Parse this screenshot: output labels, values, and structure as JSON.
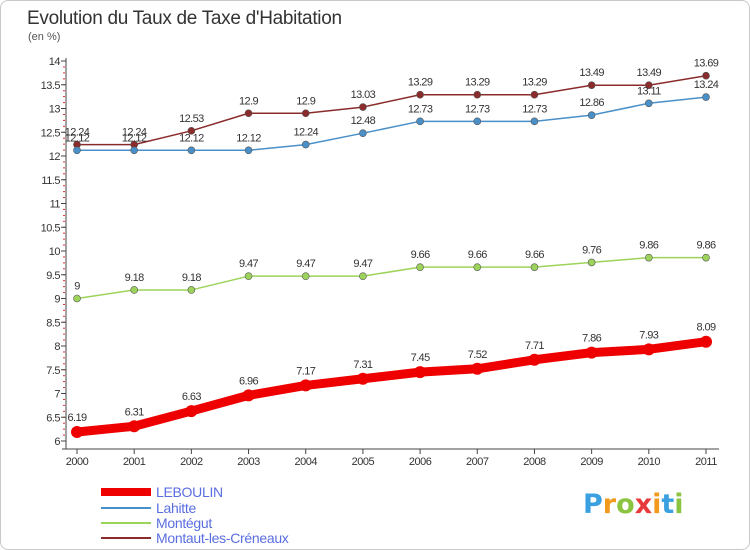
{
  "title": "Evolution du Taux de Taxe d'Habitation",
  "unit_label": "(en %)",
  "brand": [
    "P",
    "r",
    "o",
    "x",
    "i",
    "t",
    "i"
  ],
  "brand_colors": [
    "#3aa0e0",
    "#f29a1e",
    "#8ac440",
    "#e83a3a",
    "#f29a1e",
    "#3aa0e0",
    "#8ac440"
  ],
  "chart_data": {
    "type": "line",
    "categories": [
      "2000",
      "2001",
      "2002",
      "2003",
      "2004",
      "2005",
      "2006",
      "2007",
      "2008",
      "2009",
      "2010",
      "2011"
    ],
    "ylim": [
      6,
      14
    ],
    "yticks": [
      "6",
      "6.5",
      "7",
      "7.5",
      "8",
      "8.5",
      "9",
      "9.5",
      "10",
      "10.5",
      "11",
      "11.5",
      "12",
      "12.5",
      "13",
      "13.5",
      "14"
    ],
    "series": [
      {
        "name": "Montaut-les-Créneaux",
        "color": "#8b2c2c",
        "values": [
          12.24,
          12.24,
          12.53,
          12.9,
          12.9,
          13.03,
          13.29,
          13.29,
          13.29,
          13.49,
          13.49,
          13.69
        ],
        "labels": [
          "12.24",
          "12.24",
          "12.53",
          "12.9",
          "12.9",
          "13.03",
          "13.29",
          "13.29",
          "13.29",
          "13.49",
          "13.49",
          "13.69"
        ]
      },
      {
        "name": "Lahitte",
        "color": "#4a90c8",
        "values": [
          12.12,
          12.12,
          12.12,
          12.12,
          12.24,
          12.48,
          12.73,
          12.73,
          12.73,
          12.86,
          13.11,
          13.24
        ],
        "labels": [
          "12.12",
          "12.12",
          "12.12",
          "12.12",
          "12.24",
          "12.48",
          "12.73",
          "12.73",
          "12.73",
          "12.86",
          "13.11",
          "13.24"
        ]
      },
      {
        "name": "Montégut",
        "color": "#9cd35a",
        "values": [
          9,
          9.18,
          9.18,
          9.47,
          9.47,
          9.47,
          9.66,
          9.66,
          9.66,
          9.76,
          9.86,
          9.86
        ],
        "labels": [
          "9",
          "9.18",
          "9.18",
          "9.47",
          "9.47",
          "9.47",
          "9.66",
          "9.66",
          "9.66",
          "9.76",
          "9.86",
          "9.86"
        ]
      },
      {
        "name": "LEBOULIN",
        "color": "#ee0000",
        "values": [
          6.19,
          6.31,
          6.63,
          6.96,
          7.17,
          7.31,
          7.45,
          7.52,
          7.71,
          7.86,
          7.93,
          8.09
        ],
        "labels": [
          "6.19",
          "6.31",
          "6.63",
          "6.96",
          "7.17",
          "7.31",
          "7.45",
          "7.52",
          "7.71",
          "7.86",
          "7.93",
          "8.09"
        ]
      }
    ],
    "legend": [
      {
        "label": "LEBOULIN",
        "color": "#ee0000"
      },
      {
        "label": "Lahitte",
        "color": "#4a90c8"
      },
      {
        "label": "Montégut",
        "color": "#9cd35a"
      },
      {
        "label": "Montaut-les-Créneaux",
        "color": "#8b2c2c"
      }
    ],
    "grid": false,
    "legend_position": "bottom-left"
  }
}
